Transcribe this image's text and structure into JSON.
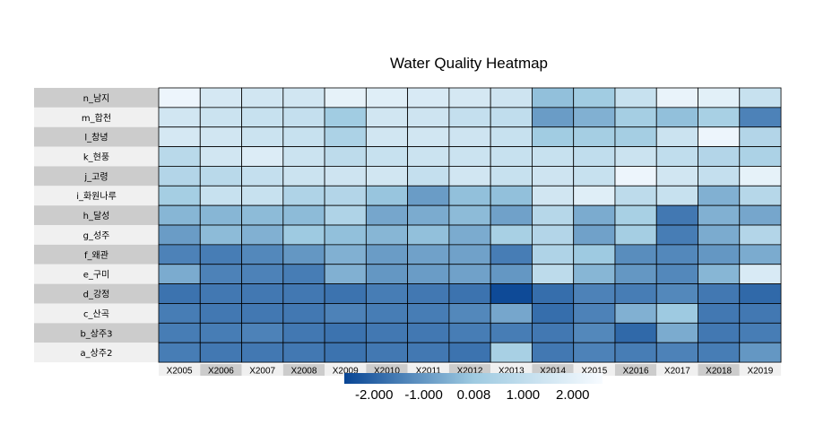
{
  "chart_data": {
    "type": "heatmap",
    "title": "Water Quality Heatmap",
    "columns": [
      "X2005",
      "X2006",
      "X2007",
      "X2008",
      "X2009",
      "X2010",
      "X2011",
      "X2012",
      "X2013",
      "X2014",
      "X2015",
      "X2016",
      "X2017",
      "X2018",
      "X2019"
    ],
    "rows": [
      "n_남지",
      "m_합천",
      "l_창녕",
      "k_현풍",
      "j_고령",
      "i_화원나루",
      "h_달성",
      "g_성주",
      "f_왜관",
      "e_구미",
      "d_강정",
      "c_산곡",
      "b_상주3",
      "a_상주2"
    ],
    "values": [
      [
        2.3,
        1.6,
        1.5,
        1.5,
        2.1,
        1.9,
        1.7,
        1.6,
        1.4,
        -0.2,
        0.1,
        1.2,
        2.2,
        2.0,
        1.2
      ],
      [
        1.5,
        1.3,
        1.2,
        1.1,
        0.1,
        1.5,
        1.4,
        1.1,
        1.0,
        -0.9,
        -0.5,
        0.2,
        -0.2,
        0.3,
        -1.4
      ],
      [
        1.6,
        1.5,
        1.3,
        1.2,
        0.4,
        1.5,
        1.5,
        1.4,
        1.2,
        0.1,
        0.2,
        0.2,
        1.3,
        2.3,
        0.6
      ],
      [
        0.8,
        1.5,
        1.8,
        1.3,
        0.9,
        1.2,
        1.3,
        1.3,
        1.2,
        1.2,
        1.0,
        1.3,
        1.0,
        0.6,
        0.4
      ],
      [
        0.6,
        0.8,
        1.1,
        1.3,
        1.4,
        1.5,
        1.1,
        1.5,
        1.2,
        1.4,
        1.2,
        2.3,
        1.5,
        1.1,
        2.1
      ],
      [
        0.2,
        1.2,
        1.2,
        0.5,
        0.6,
        -0.1,
        -0.9,
        -0.2,
        -0.2,
        1.5,
        1.9,
        0.9,
        1.2,
        -0.5,
        0.7
      ],
      [
        -0.4,
        -0.4,
        -0.3,
        -0.3,
        0.5,
        -0.7,
        -0.6,
        -0.3,
        -0.8,
        0.7,
        -0.6,
        0.3,
        -1.6,
        -0.5,
        -0.7
      ],
      [
        -0.9,
        -0.3,
        -0.5,
        0.0,
        -0.2,
        -0.4,
        -0.2,
        -0.6,
        0.3,
        0.6,
        -0.8,
        0.2,
        -1.5,
        -0.6,
        0.6
      ],
      [
        -1.4,
        -1.5,
        -1.3,
        -1.0,
        -0.5,
        -0.9,
        -0.8,
        -0.8,
        -1.5,
        0.5,
        0.0,
        -1.2,
        -1.3,
        -1.0,
        -0.6
      ],
      [
        -0.6,
        -1.4,
        -1.4,
        -1.5,
        -0.5,
        -1.0,
        -0.9,
        -0.8,
        -1.0,
        0.9,
        -0.4,
        -1.0,
        -1.3,
        -0.4,
        1.7
      ],
      [
        -1.7,
        -1.6,
        -1.6,
        -1.6,
        -1.7,
        -1.5,
        -1.6,
        -1.7,
        -2.5,
        -1.8,
        -1.4,
        -1.5,
        -1.3,
        -1.6,
        -1.9
      ],
      [
        -1.5,
        -1.6,
        -1.6,
        -1.6,
        -1.4,
        -1.5,
        -1.5,
        -1.3,
        -0.7,
        -1.8,
        -1.4,
        -0.5,
        0.0,
        -1.6,
        -1.6
      ],
      [
        -1.5,
        -1.5,
        -1.4,
        -1.6,
        -1.7,
        -1.6,
        -1.6,
        -1.5,
        -1.5,
        -1.6,
        -1.3,
        -1.9,
        -0.6,
        -1.6,
        -1.5
      ],
      [
        -1.5,
        -1.6,
        -1.6,
        -1.6,
        -1.7,
        -1.6,
        -1.6,
        -1.7,
        0.3,
        -1.6,
        -1.4,
        -1.5,
        -1.4,
        -1.5,
        -1.0
      ]
    ],
    "color_scale": {
      "min": -2.6,
      "max": 2.6,
      "low_color": "#084594",
      "mid_color": "#9ecae1",
      "high_color": "#f7fbff",
      "ticks": [
        -2.0,
        -1.0,
        0.008,
        1.0,
        2.0
      ],
      "tick_labels": [
        "-2.000",
        "-1.000",
        "0.008",
        "1.000",
        "2.000"
      ]
    },
    "legend": "bottom",
    "row_label_bg": [
      "#cccccc",
      "#f0f0f0"
    ],
    "col_label_bg": [
      "#f0f0f0",
      "#cccccc"
    ]
  }
}
